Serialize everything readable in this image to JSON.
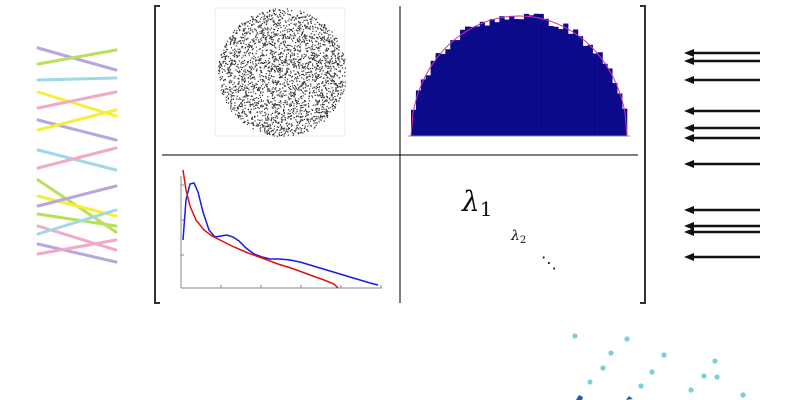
{
  "matrix": {
    "bracket_color": "#333333",
    "divider_color": "#000000"
  },
  "left_lines": {
    "colors": [
      "#b9a7dc",
      "#b8e05a",
      "#9fd8e6",
      "#f5ee3a",
      "#f2a8c8",
      "#b9a7dc",
      "#f5ee3a",
      "#9fd8e6",
      "#f2a8c8",
      "#b8e05a",
      "#f5ee3a",
      "#b9a7dc",
      "#b8e05a",
      "#f2a8c8",
      "#9fd8e6",
      "#b9a7dc",
      "#f2a8c8"
    ]
  },
  "arrows": {
    "color": "#111111",
    "count": 11
  },
  "scatter_disk": {
    "point_color": "#333333",
    "shape": "disk"
  },
  "histogram": {
    "bar_color": "#0a0a8a",
    "curve_color": "#cc33aa",
    "bin_count": 44,
    "shape": "semicircle"
  },
  "density_plot": {
    "series": [
      {
        "color": "#1a1adf"
      },
      {
        "color": "#dd1111"
      }
    ]
  },
  "eigenvalues": {
    "large": "λ1",
    "large_sym": "λ",
    "large_sub": "1",
    "small_sym": "λ",
    "small_sub": "2",
    "dots": "⋱"
  },
  "dot_grid": {
    "dot_color": "#7ecfd4",
    "accent_color": "#1f5fa8"
  }
}
